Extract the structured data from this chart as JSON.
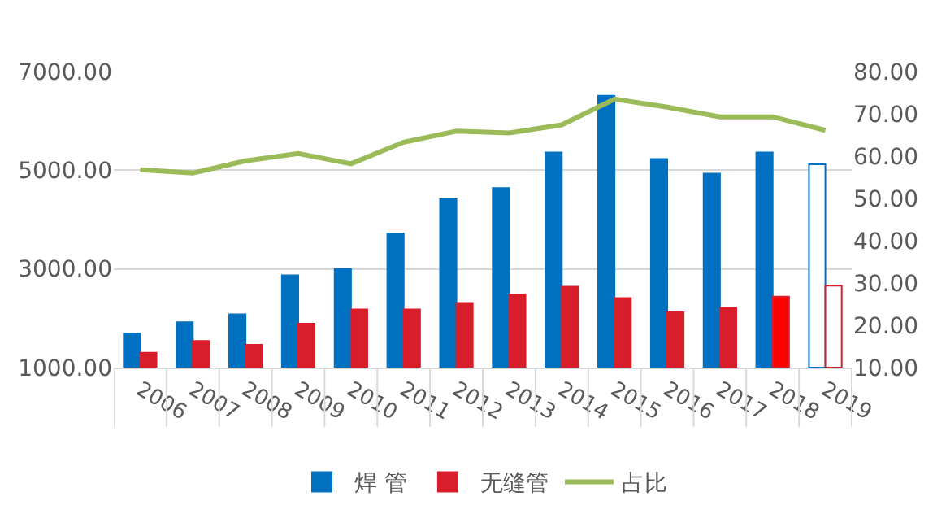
{
  "chart_data": {
    "type": "bar",
    "categories": [
      "2006",
      "2007",
      "2008",
      "2009",
      "2010",
      "2011",
      "2012",
      "2013",
      "2014",
      "2015",
      "2016",
      "2017",
      "2018",
      "2019"
    ],
    "series": [
      {
        "name": "焊 管",
        "color": "#0070c0",
        "colors": [
          "#0070c0",
          "#0070c0",
          "#0070c0",
          "#0070c0",
          "#0070c0",
          "#0070c0",
          "#0070c0",
          "#0070c0",
          "#0070c0",
          "#0070c0",
          "#0070c0",
          "#0070c0",
          "#0070c0",
          "#ffffff"
        ],
        "values": [
          1690,
          1920,
          2080,
          2870,
          3000,
          3720,
          4410,
          4640,
          5360,
          6510,
          5230,
          4930,
          5360,
          5120
        ]
      },
      {
        "name": "无缝管",
        "color": "#d81e2a",
        "colors": [
          "#d81e2a",
          "#d81e2a",
          "#d81e2a",
          "#d81e2a",
          "#d81e2a",
          "#d81e2a",
          "#d81e2a",
          "#d81e2a",
          "#d81e2a",
          "#d81e2a",
          "#d81e2a",
          "#d81e2a",
          "#ff0000",
          "#ffffff"
        ],
        "values": [
          1300,
          1540,
          1460,
          1890,
          2180,
          2180,
          2310,
          2480,
          2640,
          2410,
          2120,
          2210,
          2440,
          2660
        ]
      },
      {
        "name": "占比",
        "type": "line",
        "axis": "y2",
        "color": "#9bbb59",
        "marker": "none",
        "values": [
          56.8,
          56.0,
          58.9,
          60.6,
          58.2,
          63.3,
          65.9,
          65.5,
          67.4,
          73.5,
          71.6,
          69.3,
          69.3,
          66.1
        ]
      }
    ],
    "ylim": [
      1000,
      7000
    ],
    "yticks": [
      {
        "value": 1000,
        "label": "1000.00"
      },
      {
        "value": 3000,
        "label": "3000.00"
      },
      {
        "value": 5000,
        "label": "5000.00"
      },
      {
        "value": 7000,
        "label": "7000.00"
      }
    ],
    "y2lim": [
      10,
      80
    ],
    "y2ticks": [
      {
        "value": 10,
        "label": "10.00"
      },
      {
        "value": 20,
        "label": "20.00"
      },
      {
        "value": 30,
        "label": "30.00"
      },
      {
        "value": 40,
        "label": "40.00"
      },
      {
        "value": 50,
        "label": "50.00"
      },
      {
        "value": 60,
        "label": "60.00"
      },
      {
        "value": 70,
        "label": "70.00"
      },
      {
        "value": 80,
        "label": "80.00"
      }
    ],
    "grid": "y",
    "legend": "bottom"
  }
}
